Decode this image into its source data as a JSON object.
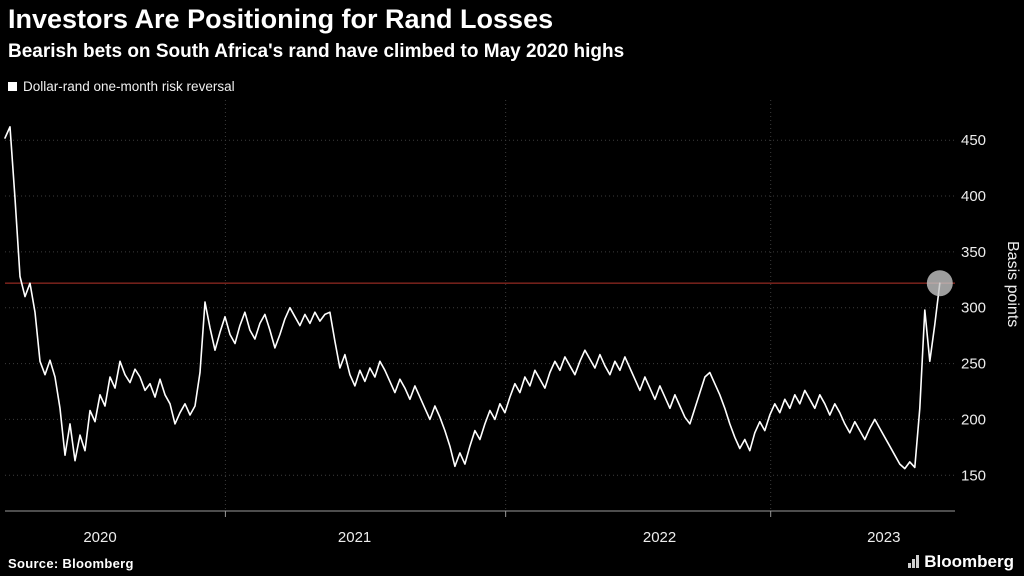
{
  "footer": {
    "source": "Source: Bloomberg",
    "brand": "Bloomberg"
  },
  "colors": {
    "background": "#000000",
    "text": "#ffffff",
    "tick_text": "#ededed",
    "grid": "#3d3d3d",
    "axis": "#9a9a9a",
    "series": "#ffffff",
    "reference": "#b6342b",
    "marker": "#c6c6c6"
  },
  "chart_data": {
    "type": "line",
    "title": "Investors Are Positioning for Rand Losses",
    "subtitle": "Bearish bets on South Africa's rand have climbed to May 2020 highs",
    "ylabel": "Basis points",
    "xlabel": "",
    "ylim": [
      118,
      486
    ],
    "yticks": [
      150,
      200,
      250,
      300,
      350,
      400,
      450
    ],
    "x_labels": [
      {
        "label": "2020",
        "pos": 0.1
      },
      {
        "label": "2021",
        "pos": 0.368
      },
      {
        "label": "2022",
        "pos": 0.689
      },
      {
        "label": "2023",
        "pos": 0.925
      }
    ],
    "x_boundaries": [
      0.232,
      0.527,
      0.806
    ],
    "grid": "dotted",
    "legend_position": "top-left",
    "reference_line": {
      "value": 322,
      "color": "#b6342b"
    },
    "end_marker": {
      "value": 322,
      "radius": 13,
      "color": "#c6c6c6",
      "opacity": 0.8
    },
    "series": [
      {
        "name": "Dollar-rand one-month risk reversal",
        "color": "#ffffff",
        "x_span": 0.984,
        "values": [
          452,
          462,
          398,
          328,
          310,
          322,
          296,
          252,
          240,
          253,
          238,
          210,
          168,
          196,
          163,
          186,
          172,
          208,
          198,
          222,
          212,
          238,
          228,
          252,
          240,
          233,
          245,
          238,
          226,
          232,
          220,
          236,
          222,
          214,
          196,
          206,
          214,
          204,
          212,
          242,
          305,
          282,
          262,
          278,
          292,
          276,
          268,
          284,
          296,
          280,
          272,
          286,
          294,
          280,
          264,
          276,
          290,
          300,
          292,
          284,
          294,
          286,
          296,
          288,
          294,
          296,
          270,
          246,
          258,
          240,
          230,
          244,
          234,
          246,
          238,
          252,
          244,
          234,
          224,
          236,
          228,
          218,
          230,
          220,
          210,
          200,
          212,
          202,
          190,
          176,
          158,
          170,
          160,
          176,
          190,
          182,
          196,
          208,
          200,
          214,
          206,
          220,
          232,
          224,
          238,
          230,
          244,
          236,
          228,
          242,
          252,
          244,
          256,
          248,
          240,
          252,
          262,
          254,
          246,
          258,
          248,
          240,
          252,
          244,
          256,
          246,
          236,
          226,
          238,
          228,
          218,
          230,
          220,
          210,
          222,
          212,
          202,
          196,
          210,
          224,
          238,
          242,
          232,
          222,
          210,
          196,
          184,
          174,
          182,
          172,
          188,
          198,
          190,
          204,
          214,
          206,
          218,
          210,
          222,
          214,
          226,
          218,
          210,
          222,
          214,
          204,
          214,
          206,
          196,
          188,
          198,
          190,
          182,
          192,
          200,
          192,
          184,
          176,
          168,
          160,
          156,
          162,
          157,
          210,
          298,
          252,
          285,
          322
        ]
      }
    ]
  }
}
